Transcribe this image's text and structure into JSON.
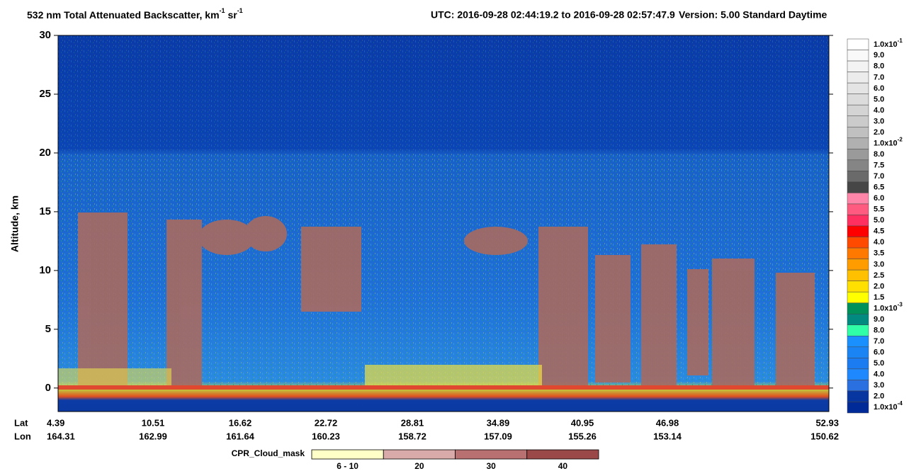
{
  "chart_data": {
    "type": "curtain",
    "title": [
      "532 nm Total Attenuated Backscatter, km",
      "-1",
      " sr",
      "-1"
    ],
    "time_range": "UTC:  2016-09-28 02:44:19.2  to  2016-09-28 02:57:47.9",
    "version": "Version: 5.00  Standard  Daytime",
    "ylabel": "Altitude, km",
    "ylim": [
      -2,
      30
    ],
    "yticks": [
      0,
      5,
      10,
      15,
      20,
      25,
      30
    ],
    "lat_label": "Lat",
    "lon_label": "Lon",
    "lat": [
      "4.39",
      "10.51",
      "16.62",
      "22.72",
      "28.81",
      "34.89",
      "40.95",
      "46.98",
      "52.93"
    ],
    "lon": [
      "164.31",
      "162.99",
      "161.64",
      "160.23",
      "158.72",
      "157.09",
      "155.26",
      "153.14",
      "150.62"
    ],
    "colorbar": {
      "labels": [
        {
          "text": "1.0x10",
          "sup": "-1"
        },
        "9.0",
        "8.0",
        "7.0",
        "6.0",
        "5.0",
        "4.0",
        "3.0",
        "2.0",
        {
          "text": "1.0x10",
          "sup": "-2"
        },
        "8.0",
        "7.5",
        "7.0",
        "6.5",
        "6.0",
        "5.5",
        "5.0",
        "4.5",
        "4.0",
        "3.5",
        "3.0",
        "2.5",
        "2.0",
        "1.5",
        {
          "text": "1.0x10",
          "sup": "-3"
        },
        "9.0",
        "8.0",
        "7.0",
        "6.0",
        "5.0",
        "4.0",
        "3.0",
        "2.0",
        {
          "text": "1.0x10",
          "sup": "-4"
        }
      ],
      "colors": [
        "#ffffff",
        "#f9f9f9",
        "#f3f3f3",
        "#ececec",
        "#e4e4e4",
        "#dcdcdc",
        "#d4d4d4",
        "#cbcbcb",
        "#c0c0c0",
        "#b0b0b0",
        "#9a9a9a",
        "#858585",
        "#6a6a6a",
        "#464646",
        "#ff86a8",
        "#ff5a80",
        "#ff3060",
        "#ff0000",
        "#ff4a00",
        "#ff7800",
        "#ff9c00",
        "#ffc000",
        "#ffe000",
        "#ffff00",
        "#00905a",
        "#008a80",
        "#30ffa8",
        "#1a90ff",
        "#1a84f5",
        "#1a7cf0",
        "#1e88ff",
        "#2a70e0",
        "#0836a0",
        "#002a98"
      ]
    },
    "cloud_mask": {
      "title": "CPR_Cloud_mask",
      "labels": [
        "6 - 10",
        "20",
        "30",
        "40"
      ],
      "colors": [
        "#ffffc8",
        "#d8aaaa",
        "#b87070",
        "#9a4848"
      ]
    }
  }
}
